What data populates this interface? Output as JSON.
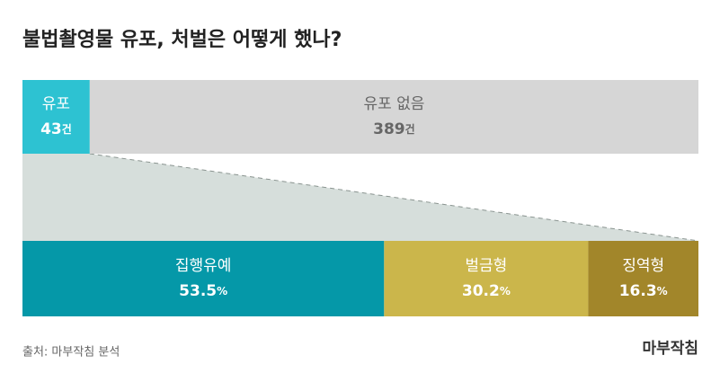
{
  "title": "불법촬영물 유포, 처벌은 어떻게 했나?",
  "source": "출처: 마부작침 분석",
  "logo": "마부작침",
  "chart_data": [
    {
      "type": "stacked-bar",
      "categories": [
        "유포",
        "유포 없음"
      ],
      "values": [
        43,
        389
      ],
      "value_labels": [
        "43건",
        "389건"
      ],
      "colors": [
        "#2dc2d2",
        "#d6d6d6"
      ],
      "text_colors": [
        "#ffffff",
        "#666666"
      ]
    },
    {
      "type": "stacked-bar",
      "categories": [
        "집행유예",
        "벌금형",
        "징역형"
      ],
      "values": [
        53.5,
        30.2,
        16.3
      ],
      "value_labels": [
        "53.5%",
        "30.2%",
        "16.3%"
      ],
      "colors": [
        "#0598a8",
        "#cbb64b",
        "#a2862a"
      ],
      "text_colors": [
        "#ffffff",
        "#ffffff",
        "#ffffff"
      ]
    }
  ]
}
